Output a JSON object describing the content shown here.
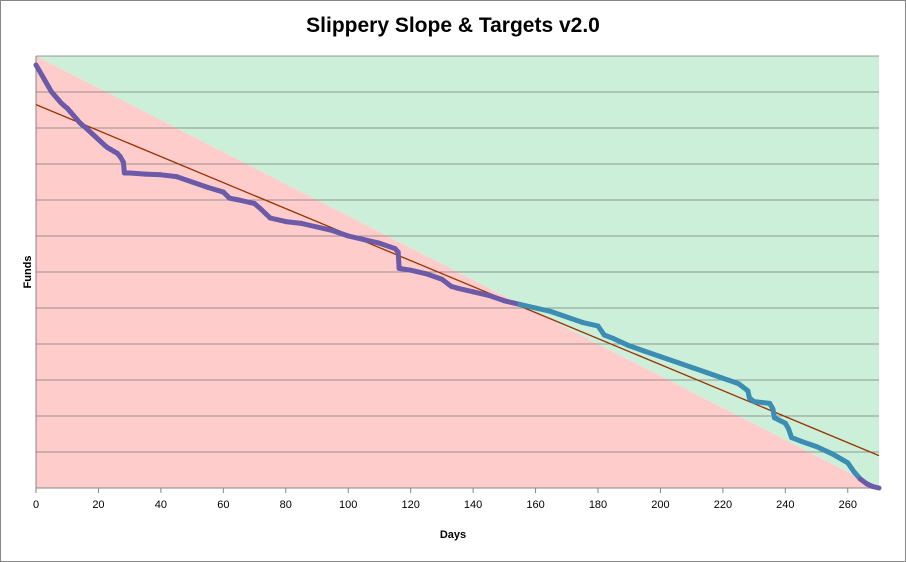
{
  "chart_data": {
    "type": "line",
    "title": "Slippery Slope & Targets v2.0",
    "xlabel": "Days",
    "ylabel": "Funds",
    "xlim": [
      0,
      270
    ],
    "ylim": [
      0,
      12
    ],
    "x_ticks": [
      0,
      20,
      40,
      60,
      80,
      100,
      120,
      140,
      160,
      180,
      200,
      220,
      240,
      260
    ],
    "y_tick_labels_visible": false,
    "grid": "horizontal",
    "legend": "none",
    "regions": [
      {
        "kind": "below-diagonal",
        "color": "#ffcccc"
      },
      {
        "kind": "above-diagonal",
        "color": "#ccefd9"
      }
    ],
    "series": [
      {
        "kind": "trend-line",
        "color": "#993300",
        "x": [
          0,
          270
        ],
        "y": [
          10.65,
          0.9
        ]
      },
      {
        "kind": "funds",
        "color_below_target": "#6a5aa8",
        "color_above_target": "#3b8db3",
        "x": [
          0,
          1,
          2,
          3,
          4,
          5,
          6,
          7,
          8,
          9,
          10,
          11,
          12,
          13,
          14,
          15,
          16,
          17,
          18,
          19,
          20,
          21,
          22,
          23,
          24,
          25,
          26,
          27,
          28,
          28.3,
          30,
          35,
          40,
          45,
          50,
          55,
          60,
          62,
          65,
          70,
          72,
          75,
          80,
          85,
          90,
          95,
          100,
          105,
          110,
          115,
          116,
          116.3,
          120,
          125,
          130,
          133,
          135,
          140,
          145,
          150,
          155,
          160,
          165,
          170,
          175,
          180,
          182,
          185,
          190,
          195,
          200,
          205,
          210,
          215,
          220,
          225,
          228,
          228.5,
          230,
          235,
          236,
          236.5,
          240,
          241,
          242,
          245,
          250,
          255,
          258,
          260,
          262,
          264,
          266,
          268,
          270
        ],
        "y": [
          11.75,
          11.6,
          11.45,
          11.3,
          11.15,
          11.0,
          10.9,
          10.8,
          10.7,
          10.62,
          10.55,
          10.45,
          10.35,
          10.25,
          10.15,
          10.07,
          10.0,
          9.92,
          9.84,
          9.76,
          9.68,
          9.6,
          9.52,
          9.45,
          9.4,
          9.35,
          9.3,
          9.2,
          9.05,
          8.75,
          8.75,
          8.72,
          8.7,
          8.65,
          8.5,
          8.35,
          8.22,
          8.05,
          8.0,
          7.9,
          7.75,
          7.5,
          7.4,
          7.35,
          7.25,
          7.15,
          7.0,
          6.9,
          6.8,
          6.65,
          6.55,
          6.1,
          6.05,
          5.95,
          5.8,
          5.6,
          5.55,
          5.45,
          5.35,
          5.2,
          5.1,
          5.0,
          4.9,
          4.75,
          4.6,
          4.5,
          4.25,
          4.15,
          3.95,
          3.8,
          3.65,
          3.5,
          3.35,
          3.2,
          3.05,
          2.9,
          2.7,
          2.5,
          2.4,
          2.35,
          2.2,
          1.95,
          1.8,
          1.65,
          1.4,
          1.3,
          1.15,
          0.95,
          0.8,
          0.7,
          0.45,
          0.25,
          0.12,
          0.04,
          0.0
        ]
      }
    ]
  }
}
